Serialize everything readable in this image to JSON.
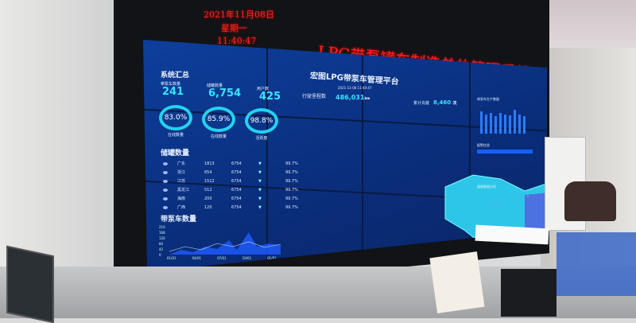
{
  "led_display": {
    "date": "2021年11月08日",
    "weekday": "星期一",
    "time": "11:40:47",
    "title": "LPG带泵罐车制造单位管理系统",
    "color": "#ff2222"
  },
  "dashboard": {
    "platform_title": "宏图LPG带泵车管理平台",
    "timestamp": "2021-11-08 11:40:47",
    "summary": {
      "heading": "系统汇总",
      "stats": [
        {
          "label": "带泵车数量",
          "value": "241"
        },
        {
          "label": "储罐数量",
          "value": "6,754"
        },
        {
          "label": "用户数",
          "value": "425"
        }
      ],
      "rings": [
        {
          "value": "83.0%",
          "label": "在线数量",
          "percent": 83.0
        },
        {
          "value": "85.9%",
          "label": "在线数量",
          "percent": 85.9
        },
        {
          "value": "98.8%",
          "label": "活跃度",
          "percent": 98.8
        }
      ]
    },
    "mileage": {
      "label": "行驶里程数",
      "value": "486,031",
      "unit": "km"
    },
    "fills": {
      "label": "累计充装",
      "value": "8,460",
      "unit": "次"
    },
    "tanks": {
      "heading": "储罐数量",
      "rows": [
        {
          "region": "广东",
          "a": "1813",
          "b": "6754",
          "pct": "99.7%"
        },
        {
          "region": "浙江",
          "a": "654",
          "b": "6754",
          "pct": "99.7%"
        },
        {
          "region": "江苏",
          "a": "1512",
          "b": "6754",
          "pct": "99.7%"
        },
        {
          "region": "黑龙江",
          "a": "512",
          "b": "6754",
          "pct": "99.7%"
        },
        {
          "region": "海南",
          "a": "200",
          "b": "6754",
          "pct": "99.7%"
        },
        {
          "region": "广西",
          "a": "120",
          "b": "6754",
          "pct": "99.7%"
        }
      ]
    },
    "trucks": {
      "heading": "带泵车数量",
      "yticks": [
        "210",
        "168",
        "126",
        "84",
        "42",
        "0"
      ],
      "xticks": [
        "01/01",
        "04/01",
        "07/01",
        "10/01",
        "01/01"
      ]
    },
    "right_panels": {
      "top": "带泵车生产数量",
      "middle": "报警信息",
      "bottom": "超限数据分析"
    },
    "accent": "#37e6ff"
  }
}
